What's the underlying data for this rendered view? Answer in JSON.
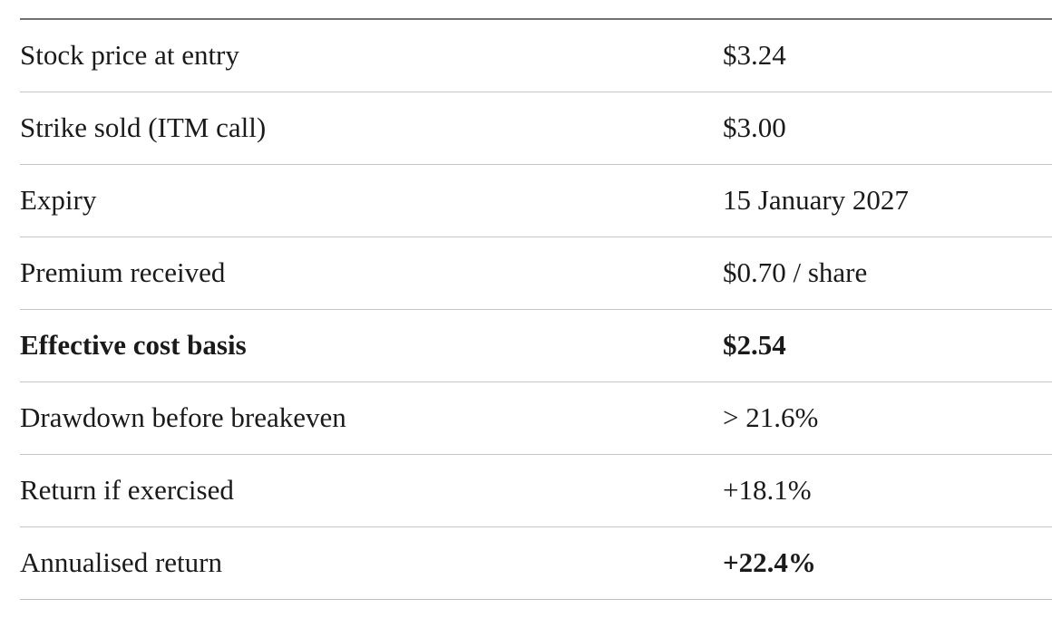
{
  "colors": {
    "background": "#ffffff",
    "text": "#1a1a1a",
    "top_rule": "#707070",
    "row_divider": "#c4c4c4"
  },
  "table": {
    "columns": [
      "metric",
      "value"
    ],
    "rows": [
      {
        "label": "Stock price at entry",
        "value": "$3.24",
        "label_bold": false,
        "value_bold": false
      },
      {
        "label": "Strike sold (ITM call)",
        "value": "$3.00",
        "label_bold": false,
        "value_bold": false
      },
      {
        "label": "Expiry",
        "value": "15 January 2027",
        "label_bold": false,
        "value_bold": false
      },
      {
        "label": "Premium received",
        "value": "$0.70 / share",
        "label_bold": false,
        "value_bold": false
      },
      {
        "label": "Effective cost basis",
        "value": "$2.54",
        "label_bold": true,
        "value_bold": true
      },
      {
        "label": "Drawdown before breakeven",
        "value": "> 21.6%",
        "label_bold": false,
        "value_bold": false
      },
      {
        "label": "Return if exercised",
        "value": "+18.1%",
        "label_bold": false,
        "value_bold": false
      },
      {
        "label": "Annualised return",
        "value": "+22.4%",
        "label_bold": false,
        "value_bold": true
      }
    ]
  }
}
